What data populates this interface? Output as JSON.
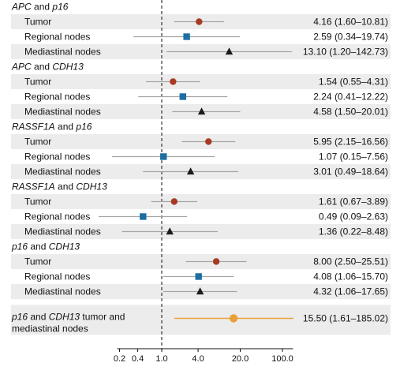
{
  "chart_data": {
    "type": "forest",
    "x_scale": "log",
    "xlim": [
      0.1,
      150
    ],
    "reference_line": 1.0,
    "x_ticks": [
      0.2,
      0.4,
      1.0,
      4.0,
      20.0,
      100.0
    ],
    "x_tick_labels": [
      "0.2",
      "0.4",
      "1.0",
      "4.0",
      "20.0",
      "100.0"
    ],
    "marker_legend": {
      "Tumor": {
        "shape": "circle",
        "color": "#a83a24"
      },
      "Regional nodes": {
        "shape": "square",
        "color": "#1d6ea3"
      },
      "Mediastinal nodes": {
        "shape": "triangle",
        "color": "#1a1a1a"
      }
    },
    "groups": [
      {
        "label": "APC and p16",
        "parts": [
          [
            "APC",
            true
          ],
          [
            " and ",
            false
          ],
          [
            "p16",
            true
          ]
        ],
        "rows": [
          {
            "label": "Tumor",
            "or": 4.16,
            "lo": 1.6,
            "hi": 10.81,
            "ci_text": "4.16 (1.60–10.81)"
          },
          {
            "label": "Regional nodes",
            "or": 2.59,
            "lo": 0.34,
            "hi": 19.74,
            "ci_text": "2.59 (0.34–19.74)"
          },
          {
            "label": "Mediastinal nodes",
            "or": 13.1,
            "lo": 1.2,
            "hi": 142.73,
            "ci_text": "13.10 (1.20–142.73)"
          }
        ]
      },
      {
        "label": "APC and CDH13",
        "parts": [
          [
            "APC",
            true
          ],
          [
            " and ",
            false
          ],
          [
            "CDH13",
            true
          ]
        ],
        "rows": [
          {
            "label": "Tumor",
            "or": 1.54,
            "lo": 0.55,
            "hi": 4.31,
            "ci_text": "1.54 (0.55–4.31)"
          },
          {
            "label": "Regional nodes",
            "or": 2.24,
            "lo": 0.41,
            "hi": 12.22,
            "ci_text": "2.24 (0.41–12.22)"
          },
          {
            "label": "Mediastinal nodes",
            "or": 4.58,
            "lo": 1.5,
            "hi": 20.01,
            "ci_text": "4.58 (1.50–20.01)"
          }
        ]
      },
      {
        "label": "RASSF1A and p16",
        "parts": [
          [
            "RASSF1A",
            true
          ],
          [
            " and ",
            false
          ],
          [
            "p16",
            true
          ]
        ],
        "rows": [
          {
            "label": "Tumor",
            "or": 5.95,
            "lo": 2.15,
            "hi": 16.56,
            "ci_text": "5.95 (2.15–16.56)"
          },
          {
            "label": "Regional nodes",
            "or": 1.07,
            "lo": 0.15,
            "hi": 7.56,
            "ci_text": "1.07 (0.15–7.56)"
          },
          {
            "label": "Mediastinal nodes",
            "or": 3.01,
            "lo": 0.49,
            "hi": 18.64,
            "ci_text": "3.01 (0.49–18.64)"
          }
        ]
      },
      {
        "label": "RASSF1A and CDH13",
        "parts": [
          [
            "RASSF1A",
            true
          ],
          [
            " and ",
            false
          ],
          [
            "CDH13",
            true
          ]
        ],
        "rows": [
          {
            "label": "Tumor",
            "or": 1.61,
            "lo": 0.67,
            "hi": 3.89,
            "ci_text": "1.61 (0.67–3.89)"
          },
          {
            "label": "Regional nodes",
            "or": 0.49,
            "lo": 0.09,
            "hi": 2.63,
            "ci_text": "0.49 (0.09–2.63)"
          },
          {
            "label": "Mediastinal nodes",
            "or": 1.36,
            "lo": 0.22,
            "hi": 8.48,
            "ci_text": "1.36 (0.22–8.48)"
          }
        ]
      },
      {
        "label": "p16 and CDH13",
        "parts": [
          [
            "p16",
            true
          ],
          [
            " and ",
            false
          ],
          [
            "CDH13",
            true
          ]
        ],
        "rows": [
          {
            "label": "Tumor",
            "or": 8.0,
            "lo": 2.5,
            "hi": 25.51,
            "ci_text": "8.00 (2.50–25.51)"
          },
          {
            "label": "Regional nodes",
            "or": 4.08,
            "lo": 1.06,
            "hi": 15.7,
            "ci_text": "4.08 (1.06–15.70)"
          },
          {
            "label": "Mediastinal nodes",
            "or": 4.32,
            "lo": 1.06,
            "hi": 17.65,
            "ci_text": "4.32 (1.06–17.65)"
          }
        ]
      }
    ],
    "combined": {
      "label": "p16 and CDH13 tumor and mediastinal nodes",
      "line1": [
        [
          "p16",
          true
        ],
        [
          " and ",
          false
        ],
        [
          "CDH13",
          true
        ],
        [
          " tumor and",
          false
        ]
      ],
      "line2": "mediastinal nodes",
      "or": 15.5,
      "lo": 1.61,
      "hi": 185.02,
      "ci_text": "15.50 (1.61–185.02)",
      "color": "#e8a03a",
      "shape": "circle"
    },
    "colors": {
      "row_shade": "#ececec",
      "ci_line": "#a6a6a6",
      "combined_line": "#e8a03a"
    }
  }
}
